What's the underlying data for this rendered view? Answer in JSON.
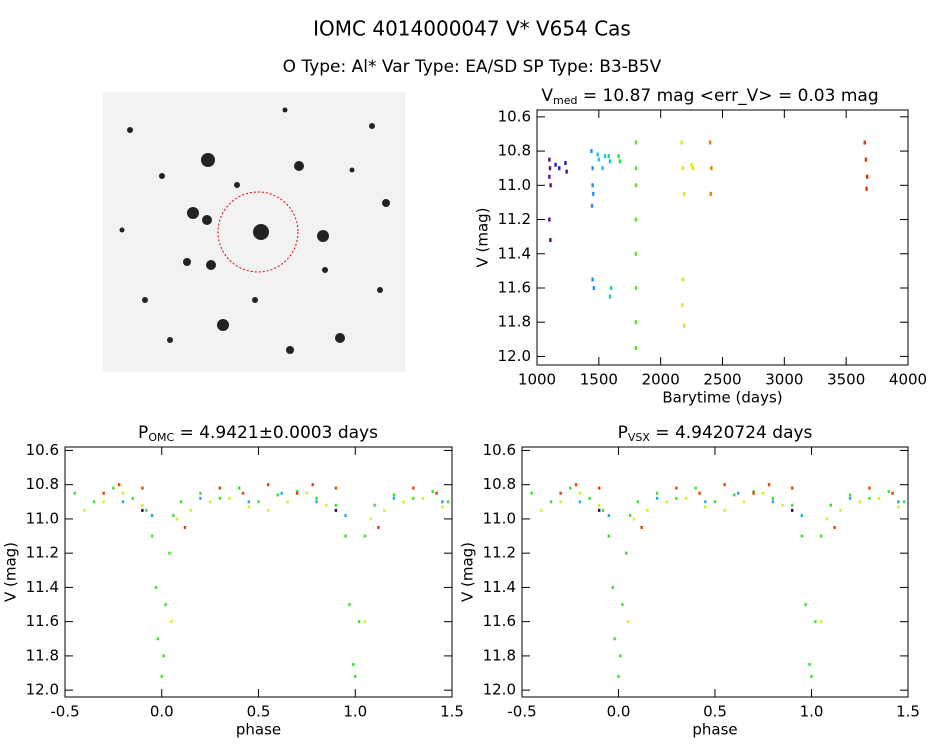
{
  "header": {
    "title": "IOMC 4014000047   V* V654 Cas",
    "subtitle": "O Type: Al*  Var Type: EA/SD  SP Type: B3-B5V"
  },
  "chart_data": [
    {
      "type": "scatter",
      "title": [
        "V",
        "med",
        " = 10.87 mag <err_V> = 0.03 mag"
      ],
      "x_label": "Barytime (days)",
      "y_label": "V (mag)",
      "xlim": [
        1000,
        4000
      ],
      "xticks": [
        1000,
        1500,
        2000,
        2500,
        3000,
        3500,
        4000
      ],
      "ylim": [
        10.56,
        12.05
      ],
      "y_inverted": true,
      "yticks": [
        10.6,
        10.8,
        {
          "value": 11,
          "label": "11.0"
        },
        11.2,
        11.4,
        11.6,
        11.8,
        {
          "value": 12,
          "label": "12.0"
        }
      ],
      "series": [
        {
          "color": "#5a0a8c",
          "x": [
            1100,
            1100,
            1105,
            1110,
            1100,
            1108
          ],
          "values": [
            10.85,
            10.95,
            10.9,
            11.0,
            11.2,
            11.32
          ]
        },
        {
          "color": "#2020b0",
          "x": [
            1150,
            1180,
            1230,
            1240
          ],
          "values": [
            10.88,
            10.9,
            10.87,
            10.92
          ]
        },
        {
          "color": "#1e90ff",
          "x": [
            1440,
            1450,
            1450,
            1455,
            1445,
            1450,
            1460
          ],
          "values": [
            10.8,
            10.9,
            11.0,
            11.05,
            11.12,
            11.55,
            11.6
          ]
        },
        {
          "color": "#20c8d0",
          "x": [
            1490,
            1500,
            1530,
            1550
          ],
          "values": [
            10.82,
            10.85,
            10.9,
            10.83
          ]
        },
        {
          "color": "#20d0a0",
          "x": [
            1580,
            1590,
            1600,
            1590
          ],
          "values": [
            10.83,
            10.86,
            11.6,
            11.65
          ]
        },
        {
          "color": "#30e040",
          "x": [
            1660,
            1670
          ],
          "values": [
            10.83,
            10.86
          ]
        },
        {
          "color": "#60e020",
          "x": [
            1800,
            1800,
            1800,
            1800,
            1800,
            1800,
            1800,
            1800
          ],
          "values": [
            10.75,
            10.9,
            11.0,
            11.2,
            11.4,
            11.6,
            11.8,
            11.95
          ]
        },
        {
          "color": "#c8f020",
          "x": [
            2170,
            2180,
            2190,
            2180,
            2175,
            2190
          ],
          "values": [
            10.75,
            10.9,
            11.05,
            11.55,
            11.7,
            11.82
          ]
        },
        {
          "color": "#f0e000",
          "x": [
            2250,
            2260
          ],
          "values": [
            10.88,
            10.9
          ]
        },
        {
          "color": "#f08000",
          "x": [
            2400,
            2410,
            2405
          ],
          "values": [
            10.75,
            10.9,
            11.05
          ]
        },
        {
          "color": "#e03000",
          "x": [
            3650,
            3660,
            3670,
            3665
          ],
          "values": [
            10.75,
            10.85,
            10.95,
            11.02
          ]
        }
      ]
    },
    {
      "type": "scatter",
      "title": [
        "P",
        "OMC",
        " = 4.9421±0.0003 days"
      ],
      "x_label": "phase",
      "y_label": "V (mag)",
      "xlim": [
        -0.5,
        1.5
      ],
      "xticks": [
        -0.5,
        {
          "value": 0,
          "label": "0.0"
        },
        0.5,
        {
          "value": 1,
          "label": "1.0"
        },
        1.5
      ],
      "ylim": [
        10.58,
        12.04
      ],
      "y_inverted": true,
      "yticks": [
        10.6,
        10.8,
        {
          "value": 11,
          "label": "11.0"
        },
        11.2,
        11.4,
        11.6,
        11.8,
        {
          "value": 12,
          "label": "12.0"
        }
      ],
      "series": [
        {
          "color": "#40e030",
          "x": [
            -0.45,
            -0.35,
            -0.25,
            -0.15,
            -0.08,
            -0.05,
            -0.03,
            -0.02,
            0.0,
            0.01,
            0.02,
            0.04,
            0.06,
            0.1,
            0.2,
            0.3,
            0.4,
            0.5,
            0.6,
            0.7,
            0.8,
            0.9,
            0.95,
            0.97,
            0.99,
            1.0,
            1.02,
            1.05,
            1.1,
            1.2,
            1.3,
            1.4,
            1.48
          ],
          "values": [
            10.85,
            10.9,
            10.82,
            10.88,
            10.95,
            11.1,
            11.4,
            11.7,
            11.92,
            11.8,
            11.5,
            11.2,
            10.98,
            10.9,
            10.85,
            10.88,
            10.82,
            10.9,
            10.86,
            10.84,
            10.88,
            10.92,
            11.1,
            11.5,
            11.85,
            11.92,
            11.6,
            11.1,
            10.92,
            10.86,
            10.88,
            10.84,
            10.9
          ]
        },
        {
          "color": "#d8f020",
          "x": [
            -0.4,
            -0.3,
            -0.2,
            -0.1,
            0.05,
            0.08,
            0.15,
            0.25,
            0.35,
            0.45,
            0.55,
            0.65,
            0.75,
            0.85,
            1.05,
            1.08,
            1.15,
            1.25,
            1.35,
            1.45
          ],
          "values": [
            10.95,
            10.9,
            10.85,
            10.92,
            11.6,
            11.0,
            10.95,
            10.9,
            10.88,
            10.93,
            10.95,
            10.9,
            10.85,
            10.92,
            11.6,
            11.0,
            10.95,
            10.9,
            10.88,
            10.93
          ]
        },
        {
          "color": "#e84000",
          "x": [
            -0.3,
            -0.22,
            -0.1,
            0.12,
            0.3,
            0.42,
            0.55,
            0.7,
            0.78,
            0.9,
            1.12,
            1.3,
            1.42
          ],
          "values": [
            10.85,
            10.8,
            10.82,
            11.05,
            10.82,
            10.85,
            10.8,
            10.85,
            10.8,
            10.82,
            11.05,
            10.82,
            10.85
          ]
        },
        {
          "color": "#20b0e0",
          "x": [
            -0.2,
            -0.05,
            0.2,
            0.45,
            0.62,
            0.8,
            0.95,
            1.2,
            1.45
          ],
          "values": [
            10.9,
            10.98,
            10.88,
            10.9,
            10.85,
            10.9,
            10.98,
            10.88,
            10.9
          ]
        },
        {
          "color": "#300050",
          "x": [
            -0.1,
            0.9
          ],
          "values": [
            10.95,
            10.95
          ]
        }
      ]
    },
    {
      "type": "scatter",
      "title": [
        "P",
        "VSX",
        " = 4.9420724 days"
      ],
      "x_label": "phase",
      "y_label": "V (mag)",
      "xlim": [
        -0.5,
        1.5
      ],
      "xticks": [
        -0.5,
        {
          "value": 0,
          "label": "0.0"
        },
        0.5,
        {
          "value": 1,
          "label": "1.0"
        },
        1.5
      ],
      "ylim": [
        10.58,
        12.04
      ],
      "y_inverted": true,
      "yticks": [
        10.6,
        10.8,
        {
          "value": 11,
          "label": "11.0"
        },
        11.2,
        11.4,
        11.6,
        11.8,
        {
          "value": 12,
          "label": "12.0"
        }
      ],
      "series": [
        {
          "color": "#40e030",
          "x": [
            -0.45,
            -0.35,
            -0.25,
            -0.15,
            -0.08,
            -0.05,
            -0.03,
            -0.02,
            0.0,
            0.01,
            0.02,
            0.04,
            0.06,
            0.1,
            0.2,
            0.3,
            0.4,
            0.5,
            0.6,
            0.7,
            0.8,
            0.9,
            0.95,
            0.97,
            0.99,
            1.0,
            1.02,
            1.05,
            1.1,
            1.2,
            1.3,
            1.4,
            1.48
          ],
          "values": [
            10.85,
            10.9,
            10.82,
            10.88,
            10.95,
            11.1,
            11.4,
            11.7,
            11.92,
            11.8,
            11.5,
            11.2,
            10.98,
            10.9,
            10.85,
            10.88,
            10.82,
            10.9,
            10.86,
            10.84,
            10.88,
            10.92,
            11.1,
            11.5,
            11.85,
            11.92,
            11.6,
            11.1,
            10.92,
            10.86,
            10.88,
            10.84,
            10.9
          ]
        },
        {
          "color": "#d8f020",
          "x": [
            -0.4,
            -0.3,
            -0.2,
            -0.1,
            0.05,
            0.08,
            0.15,
            0.25,
            0.35,
            0.45,
            0.55,
            0.65,
            0.75,
            0.85,
            1.05,
            1.08,
            1.15,
            1.25,
            1.35,
            1.45
          ],
          "values": [
            10.95,
            10.9,
            10.85,
            10.92,
            11.6,
            11.0,
            10.95,
            10.9,
            10.88,
            10.93,
            10.95,
            10.9,
            10.85,
            10.92,
            11.6,
            11.0,
            10.95,
            10.9,
            10.88,
            10.93
          ]
        },
        {
          "color": "#e84000",
          "x": [
            -0.3,
            -0.22,
            -0.1,
            0.12,
            0.3,
            0.42,
            0.55,
            0.7,
            0.78,
            0.9,
            1.12,
            1.3,
            1.42
          ],
          "values": [
            10.85,
            10.8,
            10.82,
            11.05,
            10.82,
            10.85,
            10.8,
            10.85,
            10.8,
            10.82,
            11.05,
            10.82,
            10.85
          ]
        },
        {
          "color": "#20b0e0",
          "x": [
            -0.2,
            -0.05,
            0.2,
            0.45,
            0.62,
            0.8,
            0.95,
            1.2,
            1.45
          ],
          "values": [
            10.9,
            10.98,
            10.88,
            10.9,
            10.85,
            10.9,
            10.98,
            10.88,
            10.9
          ]
        },
        {
          "color": "#300050",
          "x": [
            -0.1,
            0.9
          ],
          "values": [
            10.95,
            10.95
          ]
        }
      ]
    }
  ]
}
